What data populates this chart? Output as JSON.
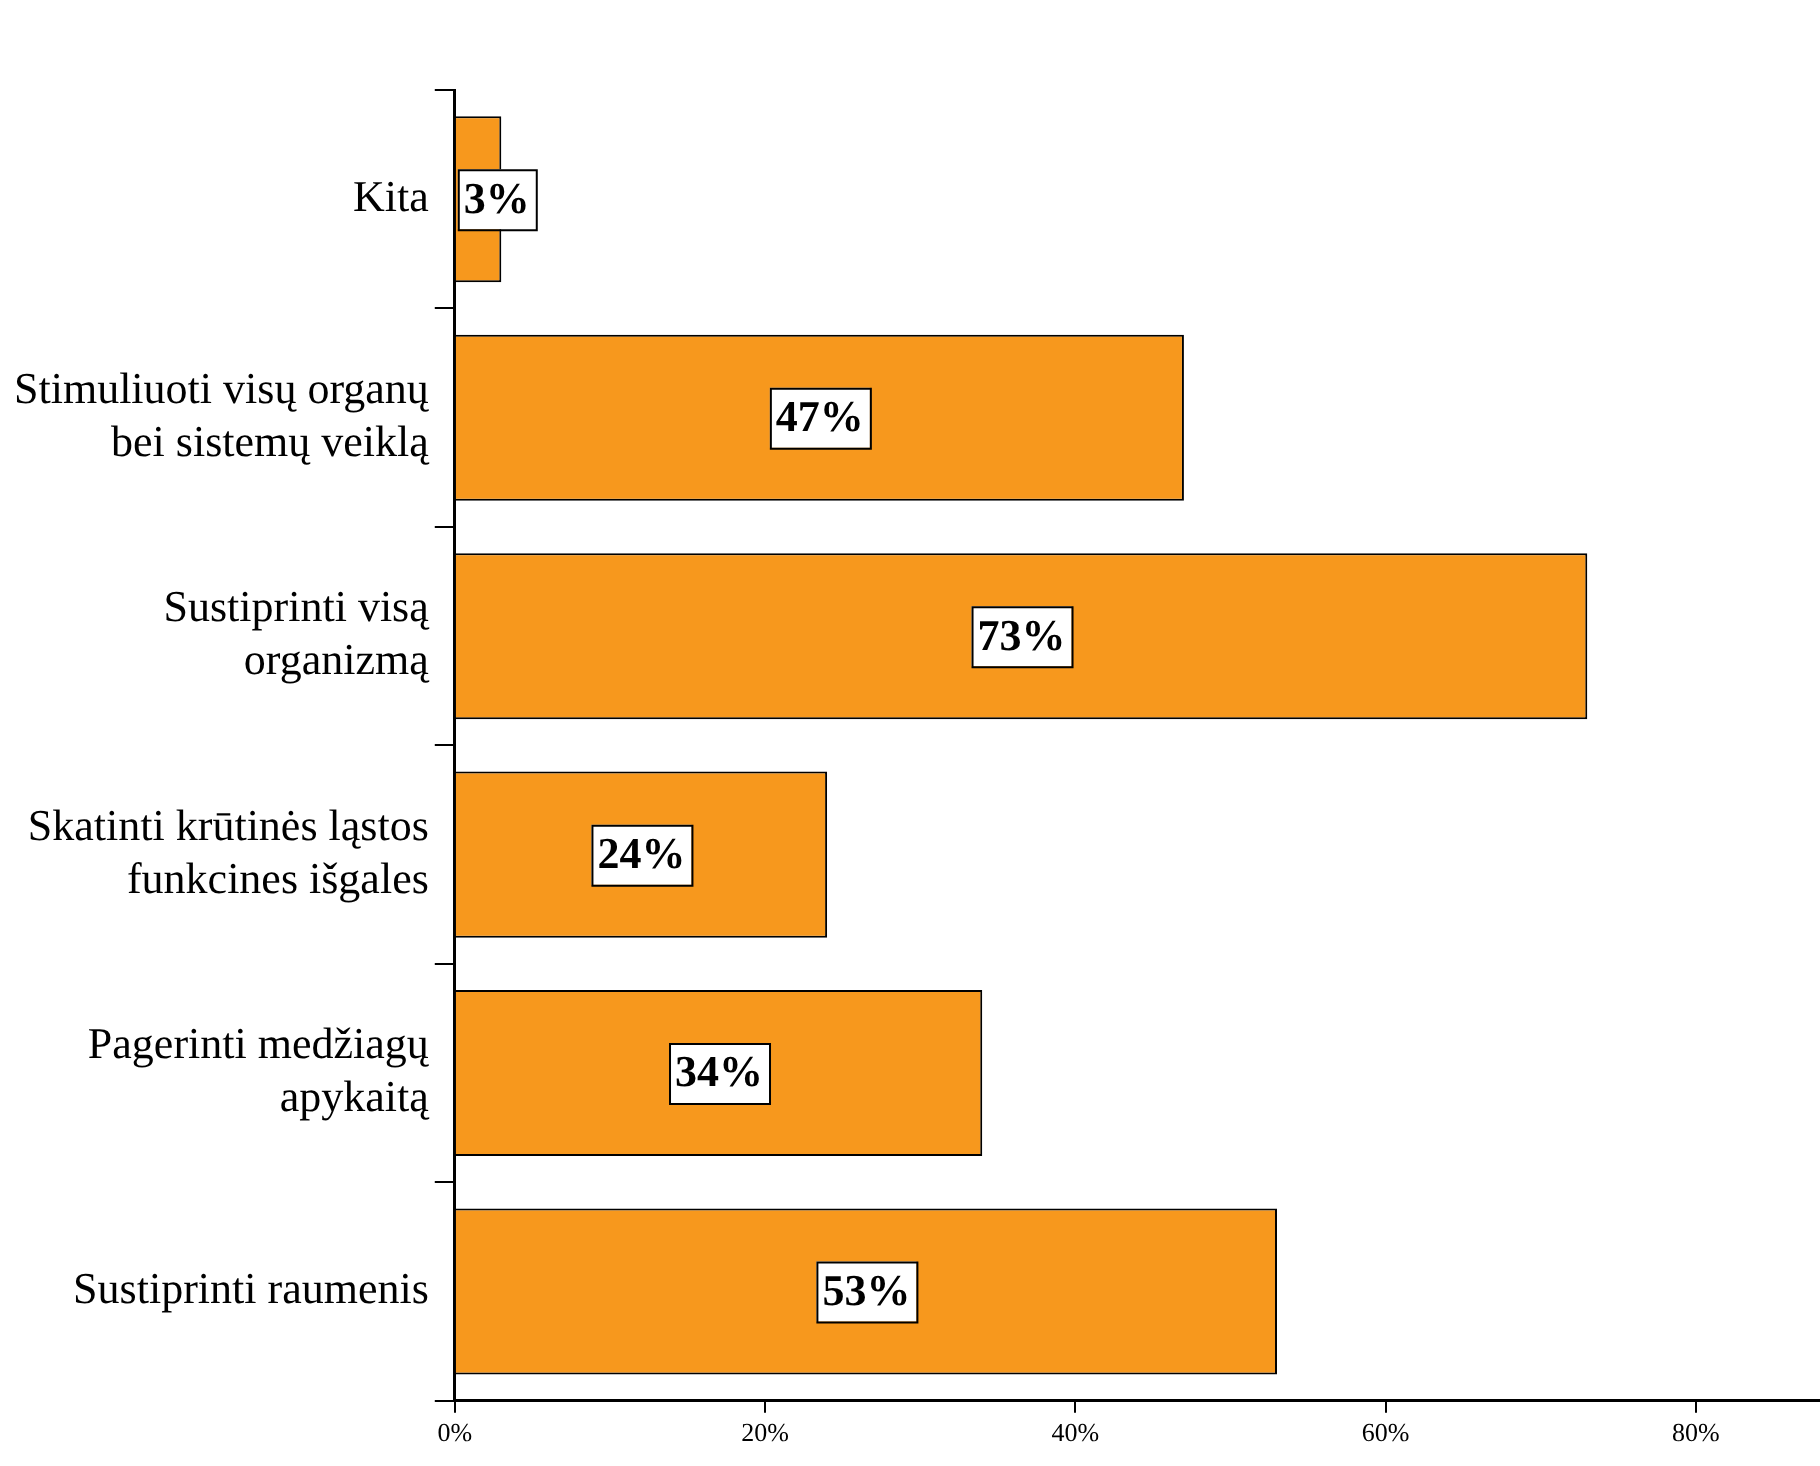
{
  "chart_data": {
    "type": "bar",
    "orientation": "horizontal",
    "categories": [
      "Kita",
      "Stimuliuoti visų organų\nbei sistemų veiklą",
      "Sustiprinti visą\norganizmą",
      "Skatinti krūtinės ląstos\nfunkcines išgales",
      "Pagerinti medžiagų\napykaitą",
      "Sustiprinti raumenis"
    ],
    "values": [
      3,
      47,
      73,
      24,
      34,
      53
    ],
    "value_labels": [
      "3%",
      "47%",
      "73%",
      "24%",
      "34%",
      "53%"
    ],
    "color": "#f7981d",
    "xlim": [
      0,
      88
    ],
    "xticks": [
      {
        "value": 0,
        "label": "0%"
      },
      {
        "value": 20,
        "label": "20%"
      },
      {
        "value": 40,
        "label": "40%"
      },
      {
        "value": 60,
        "label": "60%"
      },
      {
        "value": 80,
        "label": "80%"
      }
    ],
    "grid": false,
    "legend": false
  }
}
